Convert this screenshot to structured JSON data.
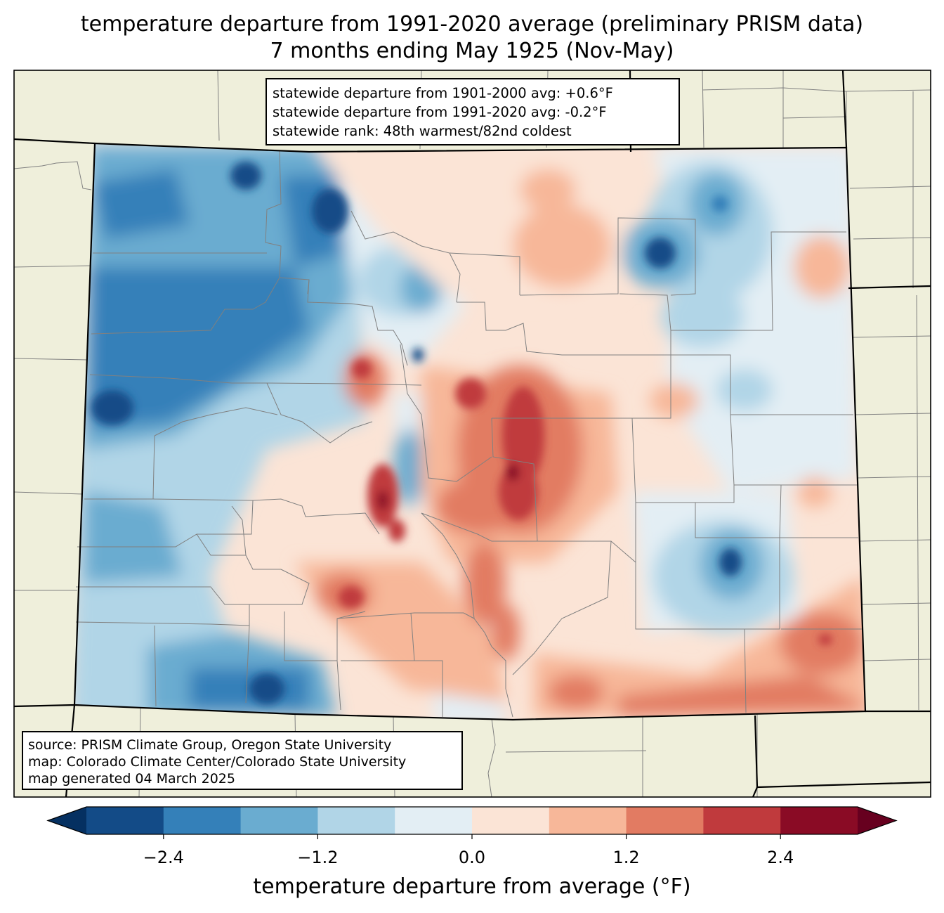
{
  "title": {
    "line1": "temperature departure from 1991-2020 average (preliminary PRISM data)",
    "line2": "7 months ending May 1925 (Nov-May)"
  },
  "stats_box": {
    "line1": "statewide departure from 1901-2000 avg: +0.6°F",
    "line2": "statewide departure from 1991-2020 avg: -0.2°F",
    "line3": "statewide rank: 48th warmest/82nd coldest"
  },
  "source_box": {
    "line1": "source: PRISM Climate Group, Oregon State University",
    "line2": "map: Colorado Climate Center/Colorado State University",
    "line3": "map generated 04 March 2025"
  },
  "colorbar": {
    "label": "temperature departure from average (°F)",
    "ticks": [
      "−2.4",
      "−1.2",
      "0.0",
      "1.2",
      "2.4"
    ],
    "tick_values": [
      -2.4,
      -1.2,
      0.0,
      1.2,
      2.4
    ],
    "range": [
      -3.0,
      3.0
    ],
    "colors": [
      "#053061",
      "#134b87",
      "#3480b9",
      "#6aacd0",
      "#b1d5e7",
      "#e3eef4",
      "#fbe4d6",
      "#f7b799",
      "#e27b62",
      "#c03a3d",
      "#8a0b25",
      "#67001f"
    ]
  },
  "colors": {
    "land": "#efefdb",
    "state_border": "#000000",
    "county_border": "#808080"
  }
}
